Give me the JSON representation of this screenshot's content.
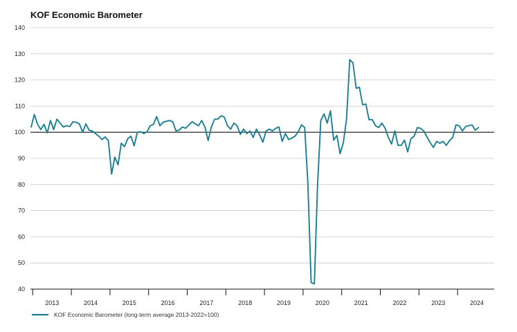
{
  "chart_data": {
    "type": "line",
    "title": "KOF Economic Barometer",
    "xlabel": "",
    "ylabel": "",
    "ylim": [
      40,
      140
    ],
    "yticks": [
      40,
      50,
      60,
      70,
      80,
      90,
      100,
      110,
      120,
      130,
      140
    ],
    "reference_line": 100,
    "x_start": "2012-12",
    "years": [
      "2013",
      "2014",
      "2015",
      "2016",
      "2017",
      "2018",
      "2019",
      "2020",
      "2021",
      "2022",
      "2023",
      "2024"
    ],
    "legend_position": "bottom-left",
    "series": [
      {
        "name": "KOF Economic Barometer (long-term average 2013-2022=100)",
        "color": "#1a7f93",
        "values": [
          102.0,
          106.8,
          103.0,
          101.0,
          103.0,
          99.8,
          104.5,
          101.0,
          105.0,
          103.5,
          102.0,
          102.5,
          102.2,
          104.0,
          103.8,
          103.2,
          100.0,
          103.2,
          100.8,
          100.5,
          99.5,
          98.5,
          97.2,
          98.2,
          96.8,
          84.0,
          90.5,
          87.5,
          95.8,
          94.5,
          97.5,
          98.5,
          94.8,
          100.0,
          100.2,
          99.5,
          100.2,
          102.5,
          103.0,
          106.0,
          102.5,
          103.8,
          104.2,
          104.5,
          104.0,
          100.5,
          100.8,
          102.0,
          101.5,
          102.8,
          104.0,
          103.2,
          102.5,
          104.5,
          102.0,
          96.8,
          102.0,
          105.0,
          105.0,
          106.3,
          105.8,
          102.5,
          101.2,
          103.5,
          102.5,
          99.2,
          101.2,
          99.5,
          100.5,
          98.0,
          101.2,
          99.0,
          96.2,
          100.5,
          101.2,
          100.5,
          101.5,
          102.0,
          96.5,
          99.5,
          97.2,
          97.8,
          98.5,
          100.2,
          102.8,
          101.8,
          80.0,
          42.5,
          42.0,
          80.0,
          104.5,
          107.0,
          103.5,
          108.2,
          97.0,
          98.8,
          91.8,
          96.0,
          105.0,
          127.8,
          126.5,
          116.8,
          117.2,
          110.5,
          110.8,
          104.8,
          104.8,
          102.5,
          101.8,
          103.5,
          101.5,
          98.0,
          95.5,
          100.5,
          95.0,
          95.0,
          97.0,
          92.5,
          97.5,
          98.5,
          101.8,
          101.5,
          100.5,
          98.2,
          96.0,
          94.2,
          96.5,
          95.8,
          96.5,
          95.0,
          96.8,
          98.0,
          102.8,
          102.5,
          100.5,
          102.2,
          102.5,
          102.8,
          100.8,
          101.8
        ]
      }
    ]
  }
}
